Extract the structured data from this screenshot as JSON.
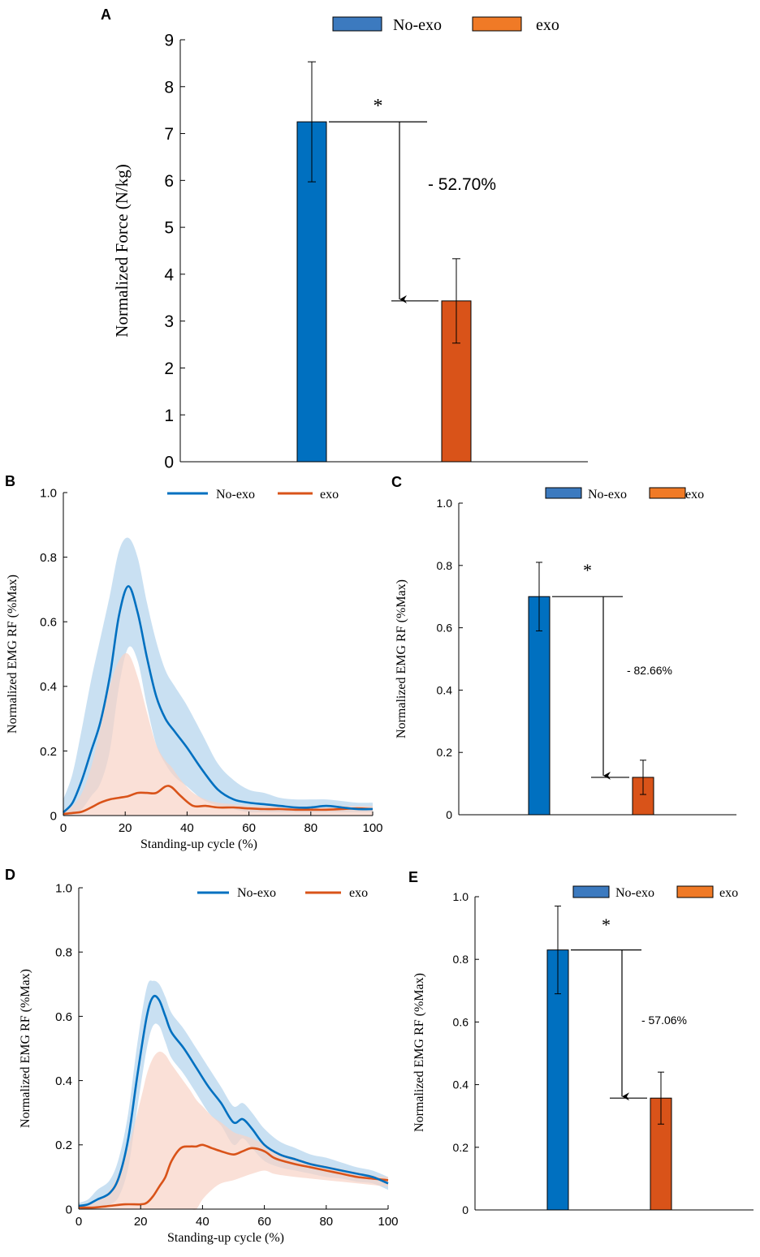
{
  "colors": {
    "no_exo": "#0070C0",
    "exo": "#D95319",
    "no_exo_band": "#B7D6EE",
    "exo_band": "#F8D3C6",
    "axis": "#000000"
  },
  "legend": {
    "no_exo": "No-exo",
    "exo": "exo"
  },
  "chart_data": [
    {
      "id": "A",
      "panel_label": "A",
      "type": "bar",
      "categories": [
        "No-exo",
        "exo"
      ],
      "values": [
        7.25,
        3.43
      ],
      "errors": [
        1.28,
        0.9
      ],
      "ylabel": "Normalized Force (N/kg)",
      "xlabel": "",
      "ylim": [
        0,
        9
      ],
      "yticks": [
        "0",
        "1",
        "2",
        "3",
        "4",
        "5",
        "6",
        "7",
        "8",
        "9"
      ],
      "significance": "*",
      "change_label": "- 52.70%"
    },
    {
      "id": "B",
      "panel_label": "B",
      "type": "line",
      "xlabel": "Standing-up cycle (%)",
      "ylabel": "Normalized EMG RF (%Max)",
      "xlim": [
        0,
        100
      ],
      "ylim": [
        0,
        1
      ],
      "xticks": [
        "0",
        "20",
        "40",
        "60",
        "80",
        "100"
      ],
      "yticks": [
        "0",
        "0.2",
        "0.4",
        "0.6",
        "0.8",
        "1.0"
      ],
      "series": [
        {
          "name": "No-exo",
          "x": [
            0,
            3,
            6,
            9,
            12,
            15,
            18,
            21,
            24,
            27,
            30,
            33,
            36,
            40,
            45,
            50,
            55,
            60,
            65,
            70,
            75,
            80,
            85,
            90,
            95,
            100
          ],
          "y": [
            0.01,
            0.04,
            0.11,
            0.2,
            0.29,
            0.43,
            0.62,
            0.71,
            0.63,
            0.49,
            0.37,
            0.3,
            0.26,
            0.21,
            0.14,
            0.08,
            0.05,
            0.04,
            0.035,
            0.03,
            0.025,
            0.025,
            0.03,
            0.025,
            0.02,
            0.02
          ],
          "upper": [
            0.05,
            0.13,
            0.27,
            0.42,
            0.55,
            0.68,
            0.82,
            0.86,
            0.8,
            0.66,
            0.54,
            0.45,
            0.4,
            0.34,
            0.25,
            0.16,
            0.11,
            0.08,
            0.07,
            0.055,
            0.05,
            0.05,
            0.05,
            0.045,
            0.04,
            0.04
          ],
          "lower": [
            0.0,
            0.0,
            0.02,
            0.06,
            0.1,
            0.2,
            0.4,
            0.52,
            0.48,
            0.34,
            0.22,
            0.16,
            0.12,
            0.09,
            0.05,
            0.03,
            0.02,
            0.01,
            0.01,
            0.01,
            0.01,
            0.01,
            0.01,
            0.01,
            0.01,
            0.01
          ]
        },
        {
          "name": "exo",
          "x": [
            0,
            3,
            6,
            9,
            12,
            15,
            18,
            21,
            24,
            27,
            30,
            33,
            35,
            38,
            42,
            46,
            50,
            55,
            60,
            65,
            70,
            75,
            80,
            85,
            90,
            95,
            100
          ],
          "y": [
            0.005,
            0.008,
            0.012,
            0.025,
            0.04,
            0.05,
            0.055,
            0.06,
            0.07,
            0.07,
            0.07,
            0.09,
            0.088,
            0.06,
            0.03,
            0.03,
            0.025,
            0.025,
            0.022,
            0.02,
            0.02,
            0.018,
            0.018,
            0.018,
            0.02,
            0.022,
            0.02
          ],
          "upper": [
            0.01,
            0.03,
            0.07,
            0.15,
            0.27,
            0.4,
            0.48,
            0.5,
            0.43,
            0.32,
            0.22,
            0.17,
            0.15,
            0.11,
            0.07,
            0.05,
            0.04,
            0.035,
            0.03,
            0.03,
            0.03,
            0.025,
            0.025,
            0.025,
            0.03,
            0.03,
            0.03
          ],
          "lower": [
            0.0,
            0.0,
            0.0,
            0.0,
            0.0,
            0.0,
            0.0,
            0.0,
            0.0,
            0.0,
            0.0,
            0.0,
            0.0,
            0.0,
            0.0,
            0.0,
            0.0,
            0.0,
            0.0,
            0.0,
            0.0,
            0.0,
            0.0,
            0.0,
            0.0,
            0.0,
            0.0
          ]
        }
      ]
    },
    {
      "id": "C",
      "panel_label": "C",
      "type": "bar",
      "categories": [
        "No-exo",
        "exo"
      ],
      "values": [
        0.7,
        0.12
      ],
      "errors": [
        0.11,
        0.055
      ],
      "ylabel": "Normalized EMG RF (%Max)",
      "xlabel": "",
      "ylim": [
        0,
        1
      ],
      "yticks": [
        "0",
        "0.2",
        "0.4",
        "0.6",
        "0.8",
        "1.0"
      ],
      "significance": "*",
      "change_label": "- 82.66%"
    },
    {
      "id": "D",
      "panel_label": "D",
      "type": "line",
      "xlabel": "Standing-up cycle (%)",
      "ylabel": "Normalized EMG RF (%Max)",
      "xlim": [
        0,
        100
      ],
      "ylim": [
        0,
        1
      ],
      "xticks": [
        "0",
        "20",
        "40",
        "60",
        "80",
        "100"
      ],
      "yticks": [
        "0",
        "0.2",
        "0.4",
        "0.6",
        "0.8",
        "1.0"
      ],
      "series": [
        {
          "name": "No-exo",
          "x": [
            0,
            3,
            6,
            10,
            13,
            16,
            19,
            22,
            24,
            26,
            28,
            30,
            34,
            38,
            42,
            46,
            50,
            53,
            56,
            60,
            65,
            70,
            75,
            80,
            85,
            90,
            95,
            100
          ],
          "y": [
            0.01,
            0.015,
            0.03,
            0.05,
            0.1,
            0.22,
            0.42,
            0.6,
            0.66,
            0.65,
            0.6,
            0.55,
            0.5,
            0.44,
            0.38,
            0.33,
            0.27,
            0.28,
            0.25,
            0.2,
            0.17,
            0.155,
            0.14,
            0.13,
            0.12,
            0.11,
            0.1,
            0.08
          ],
          "upper": [
            0.02,
            0.03,
            0.06,
            0.09,
            0.16,
            0.3,
            0.52,
            0.69,
            0.71,
            0.7,
            0.66,
            0.61,
            0.56,
            0.5,
            0.44,
            0.38,
            0.32,
            0.33,
            0.3,
            0.25,
            0.21,
            0.19,
            0.17,
            0.16,
            0.145,
            0.13,
            0.12,
            0.1
          ],
          "lower": [
            0.0,
            0.0,
            0.005,
            0.015,
            0.04,
            0.13,
            0.32,
            0.5,
            0.57,
            0.57,
            0.52,
            0.47,
            0.42,
            0.36,
            0.3,
            0.26,
            0.2,
            0.22,
            0.19,
            0.15,
            0.13,
            0.12,
            0.11,
            0.1,
            0.095,
            0.085,
            0.08,
            0.06
          ]
        },
        {
          "name": "exo",
          "x": [
            0,
            5,
            10,
            15,
            20,
            22,
            24,
            26,
            28,
            30,
            33,
            36,
            38,
            40,
            43,
            46,
            50,
            53,
            56,
            60,
            63,
            66,
            70,
            75,
            80,
            85,
            90,
            95,
            100
          ],
          "y": [
            0.005,
            0.005,
            0.01,
            0.015,
            0.015,
            0.02,
            0.04,
            0.07,
            0.1,
            0.15,
            0.19,
            0.195,
            0.195,
            0.2,
            0.19,
            0.18,
            0.17,
            0.18,
            0.19,
            0.18,
            0.16,
            0.15,
            0.14,
            0.13,
            0.12,
            0.11,
            0.1,
            0.095,
            0.09
          ],
          "upper": [
            0.01,
            0.02,
            0.06,
            0.16,
            0.34,
            0.42,
            0.47,
            0.49,
            0.48,
            0.45,
            0.41,
            0.37,
            0.34,
            0.32,
            0.29,
            0.27,
            0.24,
            0.23,
            0.22,
            0.2,
            0.18,
            0.17,
            0.16,
            0.145,
            0.135,
            0.125,
            0.115,
            0.105,
            0.1
          ],
          "lower": [
            0.0,
            0.0,
            0.0,
            0.0,
            0.0,
            0.0,
            0.0,
            0.0,
            0.0,
            0.0,
            0.0,
            0.0,
            0.0,
            0.03,
            0.06,
            0.08,
            0.09,
            0.1,
            0.11,
            0.12,
            0.11,
            0.105,
            0.1,
            0.095,
            0.09,
            0.085,
            0.08,
            0.075,
            0.07
          ]
        }
      ]
    },
    {
      "id": "E",
      "panel_label": "E",
      "type": "bar",
      "categories": [
        "No-exo",
        "exo"
      ],
      "values": [
        0.83,
        0.357
      ],
      "errors": [
        0.14,
        0.083
      ],
      "ylabel": "Normalized EMG RF (%Max)",
      "xlabel": "",
      "ylim": [
        0,
        1
      ],
      "yticks": [
        "0",
        "0.2",
        "0.4",
        "0.6",
        "0.8",
        "1.0"
      ],
      "significance": "*",
      "change_label": "- 57.06%"
    }
  ]
}
